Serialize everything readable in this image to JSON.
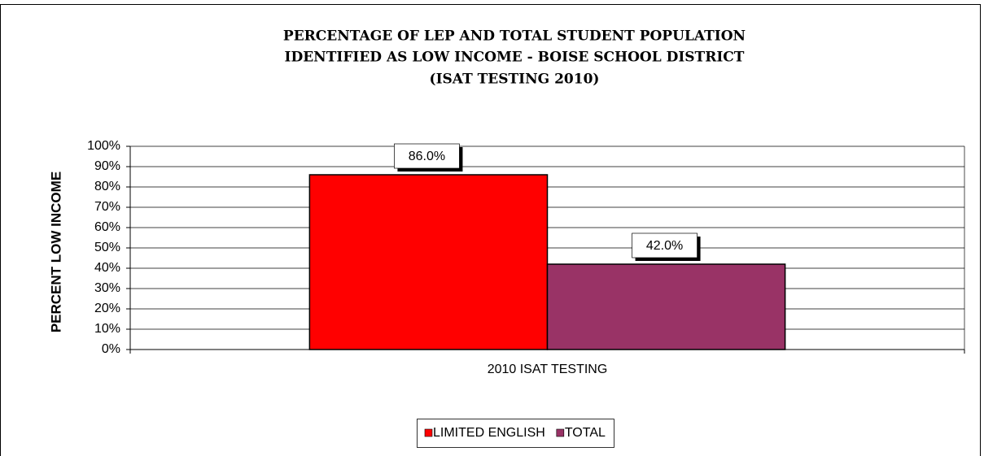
{
  "chart_data": {
    "type": "bar",
    "title": [
      "PERCENTAGE OF LEP AND TOTAL STUDENT POPULATION",
      "IDENTIFIED AS LOW INCOME - BOISE SCHOOL DISTRICT",
      "(ISAT TESTING 2010)"
    ],
    "y_label": "PERCENT LOW INCOME",
    "categories": [
      "2010 ISAT TESTING"
    ],
    "series": [
      {
        "name": "LIMITED ENGLISH",
        "color": "#ff0000",
        "values": [
          86
        ],
        "value_labels": [
          "86.0%"
        ]
      },
      {
        "name": "TOTAL",
        "color": "#993366",
        "values": [
          42
        ],
        "value_labels": [
          "42.0%"
        ]
      }
    ],
    "ylim": [
      0,
      100
    ],
    "yticks": [
      {
        "value": 0,
        "label": "0%"
      },
      {
        "value": 10,
        "label": "10%"
      },
      {
        "value": 20,
        "label": "20%"
      },
      {
        "value": 30,
        "label": "30%"
      },
      {
        "value": 40,
        "label": "40%"
      },
      {
        "value": 50,
        "label": "50%"
      },
      {
        "value": 60,
        "label": "60%"
      },
      {
        "value": 70,
        "label": "70%"
      },
      {
        "value": 80,
        "label": "80%"
      },
      {
        "value": 90,
        "label": "90%"
      },
      {
        "value": 100,
        "label": "100%"
      }
    ],
    "grid": true,
    "legend": "bottom"
  }
}
